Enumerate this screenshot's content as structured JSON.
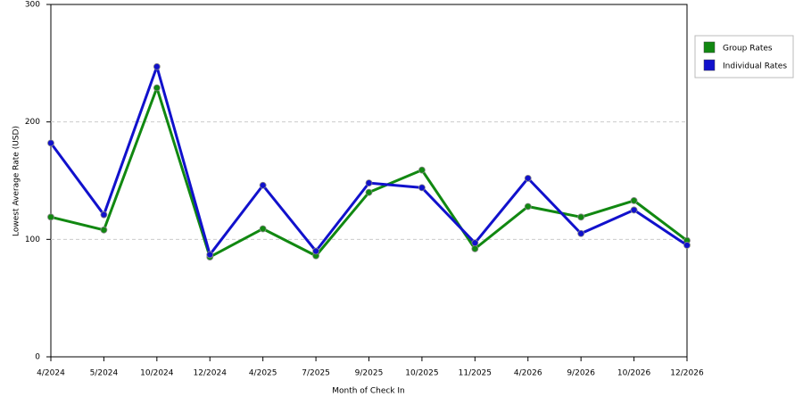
{
  "chart_data": {
    "type": "line",
    "x_label": "Month of Check In",
    "y_label": "Lowest Average Rate (USD)",
    "categories": [
      "4/2024",
      "5/2024",
      "10/2024",
      "12/2024",
      "4/2025",
      "7/2025",
      "9/2025",
      "10/2025",
      "11/2025",
      "4/2026",
      "9/2026",
      "10/2026",
      "12/2026"
    ],
    "series": [
      {
        "name": "Group Rates",
        "color": "#118811",
        "values": [
          119,
          108,
          229,
          85,
          109,
          86,
          140,
          159,
          92,
          128,
          119,
          133,
          99
        ]
      },
      {
        "name": "Individual Rates",
        "color": "#1111cc",
        "values": [
          182,
          121,
          247,
          87,
          146,
          90,
          148,
          144,
          97,
          152,
          105,
          125,
          95
        ]
      }
    ],
    "ylim": [
      0,
      300
    ],
    "yticks": [
      0,
      100,
      200,
      300
    ],
    "grid": true,
    "legend": "right"
  }
}
